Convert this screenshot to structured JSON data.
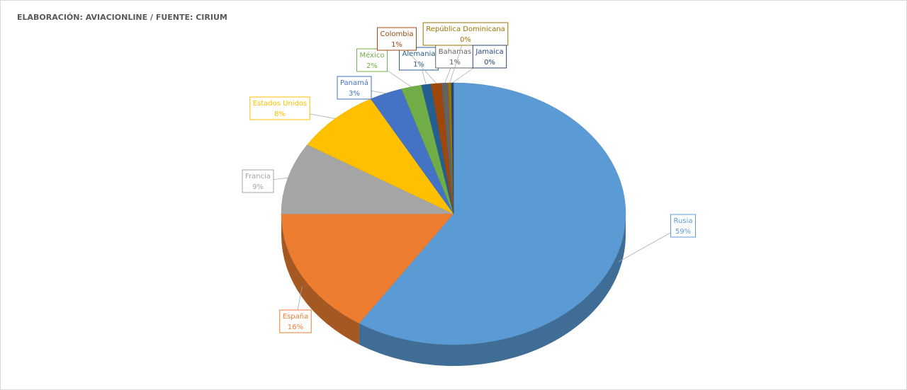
{
  "chart_data": {
    "type": "pie3d",
    "title": "ELABORACIÓN: AVIACIONLINE / FUENTE: CIRIUM",
    "categories": [
      "Rusia",
      "España",
      "Francia",
      "Estados Unidos",
      "Panamá",
      "México",
      "Alemania",
      "Colombia",
      "Bahamas",
      "República Dominicana",
      "Jamaica"
    ],
    "values": [
      59.4,
      15.8,
      8.9,
      8.2,
      3.1,
      1.9,
      0.9,
      1.0,
      0.6,
      0.3,
      0.2
    ],
    "value_labels": [
      "59%",
      "16%",
      "9%",
      "8%",
      "3%",
      "2%",
      "1%",
      "1%",
      "1%",
      "0%",
      "0%"
    ],
    "colors": [
      "#5b9bd5",
      "#ed7d31",
      "#a5a5a5",
      "#ffc000",
      "#4472c4",
      "#70ad47",
      "#255e91",
      "#9e480e",
      "#636363",
      "#997300",
      "#264478"
    ]
  }
}
